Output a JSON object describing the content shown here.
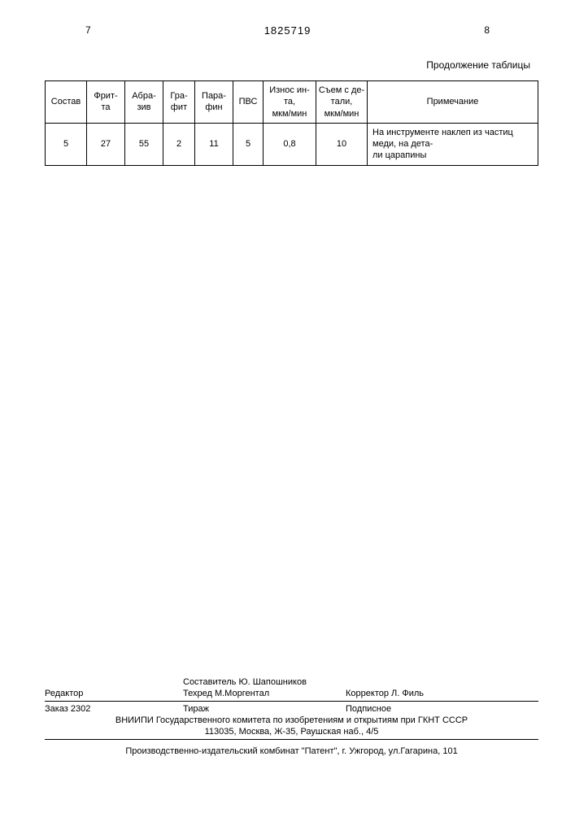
{
  "header": {
    "page_left": "7",
    "doc_number": "1825719",
    "page_right": "8"
  },
  "continuation_label": "Продолжение таблицы",
  "table": {
    "columns": [
      "Состав",
      "Фрит-\nта",
      "Абра-\nзив",
      "Гра-\nфит",
      "Пара-\nфин",
      "ПВС",
      "Износ ин-\nта,\nмкм/мин",
      "Съем с де-\nтали,\nмкм/мин",
      "Примечание"
    ],
    "row": {
      "sostav": "5",
      "fritta": "27",
      "abraziv": "55",
      "grafit": "2",
      "parafin": "11",
      "pvs": "5",
      "iznos": "0,8",
      "sem": "10",
      "note": "На инструменте наклеп из частиц меди, на дета-\nли царапины"
    }
  },
  "footer": {
    "compiler_label": "Составитель",
    "compiler_name": "Ю. Шапошников",
    "editor_label": "Редактор",
    "techred_label": "Техред",
    "techred_name": "М.Моргентал",
    "corrector_label": "Корректор",
    "corrector_name": "Л. Филь",
    "order_label": "Заказ",
    "order_num": "2302",
    "tirazh_label": "Тираж",
    "podpisnoe": "Подписное",
    "org_line1": "ВНИИПИ Государственного комитета по изобретениям и открытиям при ГКНТ СССР",
    "org_line2": "113035, Москва, Ж-35, Раушская наб., 4/5",
    "prod_line": "Производственно-издательский комбинат \"Патент\", г. Ужгород, ул.Гагарина, 101"
  }
}
